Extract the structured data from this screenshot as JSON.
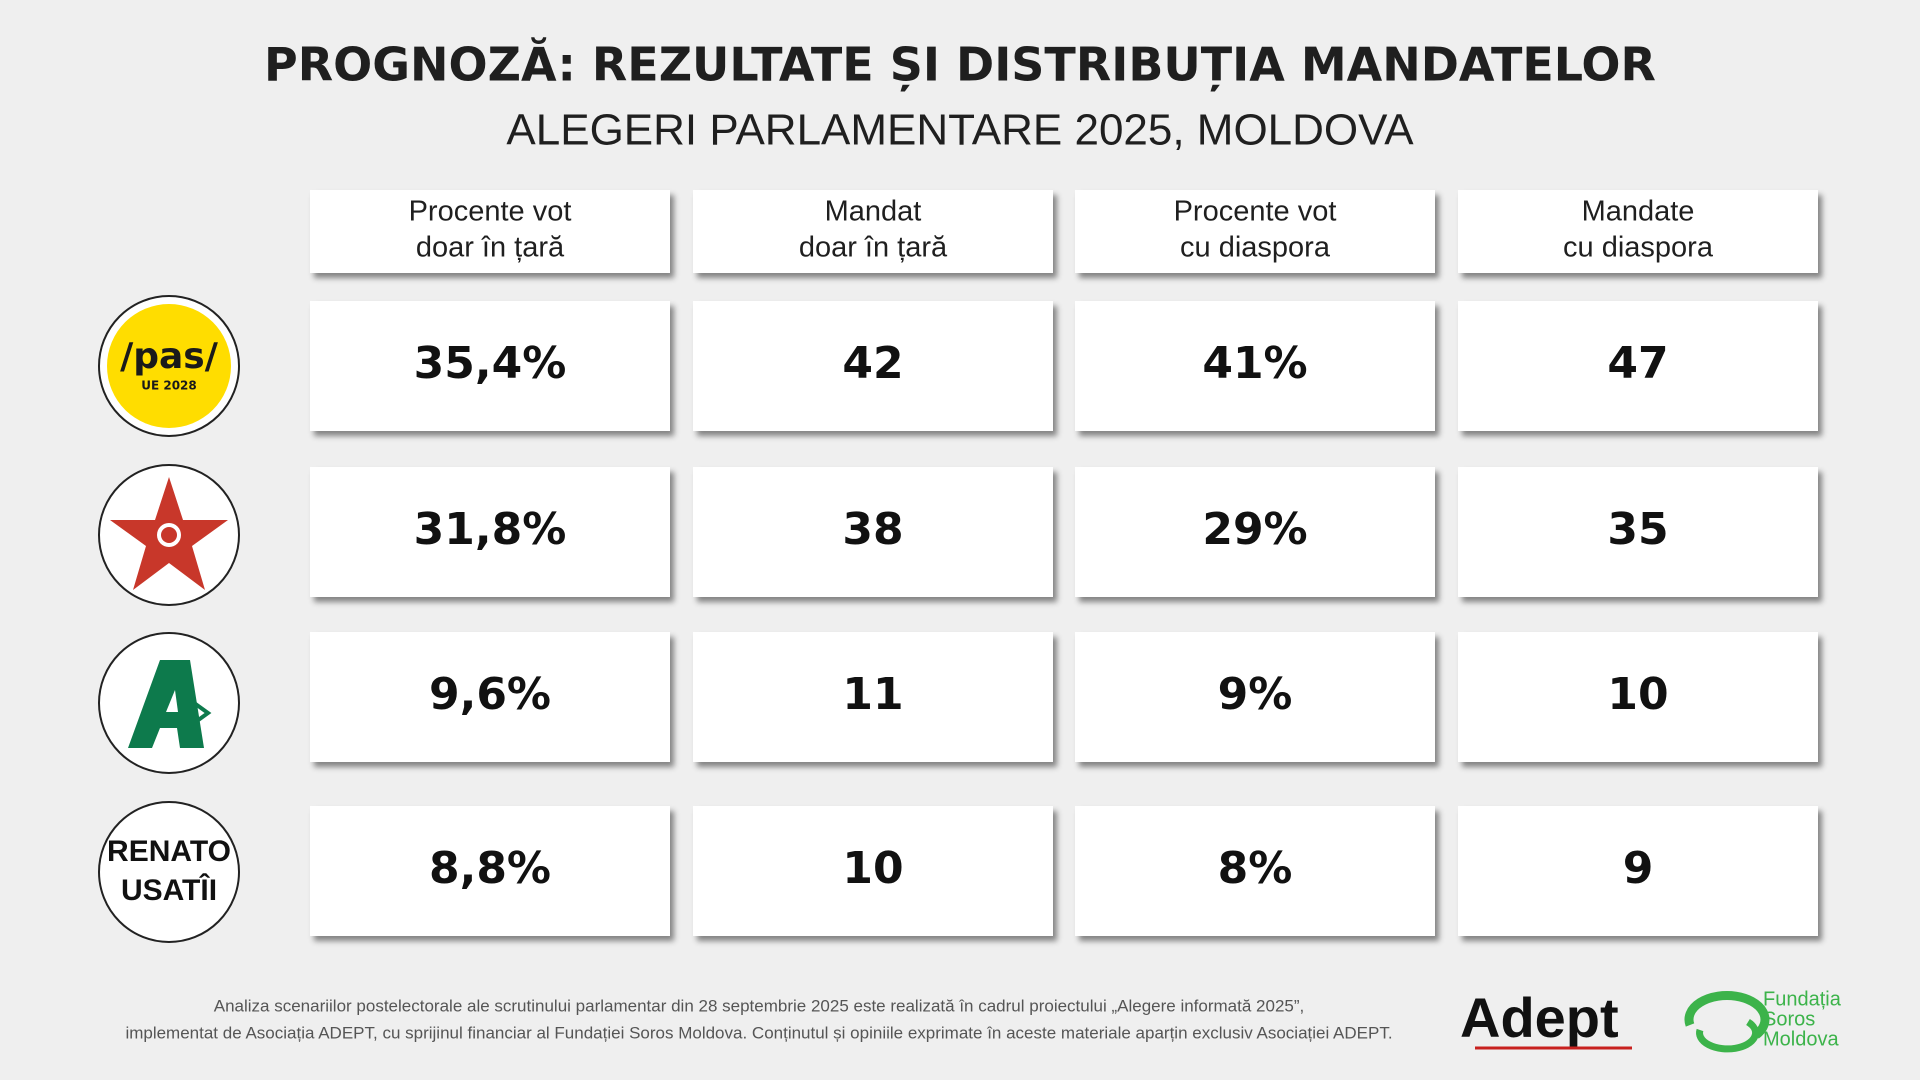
{
  "header": {
    "title": "PROGNOZĂ: REZULTATE ȘI DISTRIBUȚIA MANDATELOR",
    "subtitle": "ALEGERI PARLAMENTARE 2025, MOLDOVA"
  },
  "table": {
    "columns": [
      [
        "Procente vot",
        "doar în țară"
      ],
      [
        "Mandat",
        "doar în țară"
      ],
      [
        "Procente vot",
        "cu diaspora"
      ],
      [
        "Mandate",
        "cu diaspora"
      ]
    ],
    "rows": [
      {
        "logo": [
          "/pas/",
          "UE 2028"
        ],
        "cells": [
          "35,4%",
          "42",
          "41%",
          "47"
        ]
      },
      {
        "logo": [],
        "cells": [
          "31,8%",
          "38",
          "29%",
          "35"
        ]
      },
      {
        "logo": [],
        "cells": [
          "9,6%",
          "11",
          "9%",
          "10"
        ]
      },
      {
        "logo": [
          "RENATO",
          "USATÎI"
        ],
        "cells": [
          "8,8%",
          "10",
          "8%",
          "9"
        ]
      }
    ]
  },
  "footer": {
    "note": [
      "Analiza scenariilor postelectorale ale scrutinului parlamentar din 28 septembrie 2025 este realizată în cadrul proiectului „Alegere informată 2025”,",
      "implementat de Asociația ADEPT, cu sprijinul financiar al Fundației Soros Moldova. Conținutul și opiniile exprimate în aceste materiale aparțin exclusiv Asociației ADEPT."
    ],
    "adept": "Adept",
    "soros": [
      "Fundația",
      "Soros",
      "Moldova"
    ]
  }
}
